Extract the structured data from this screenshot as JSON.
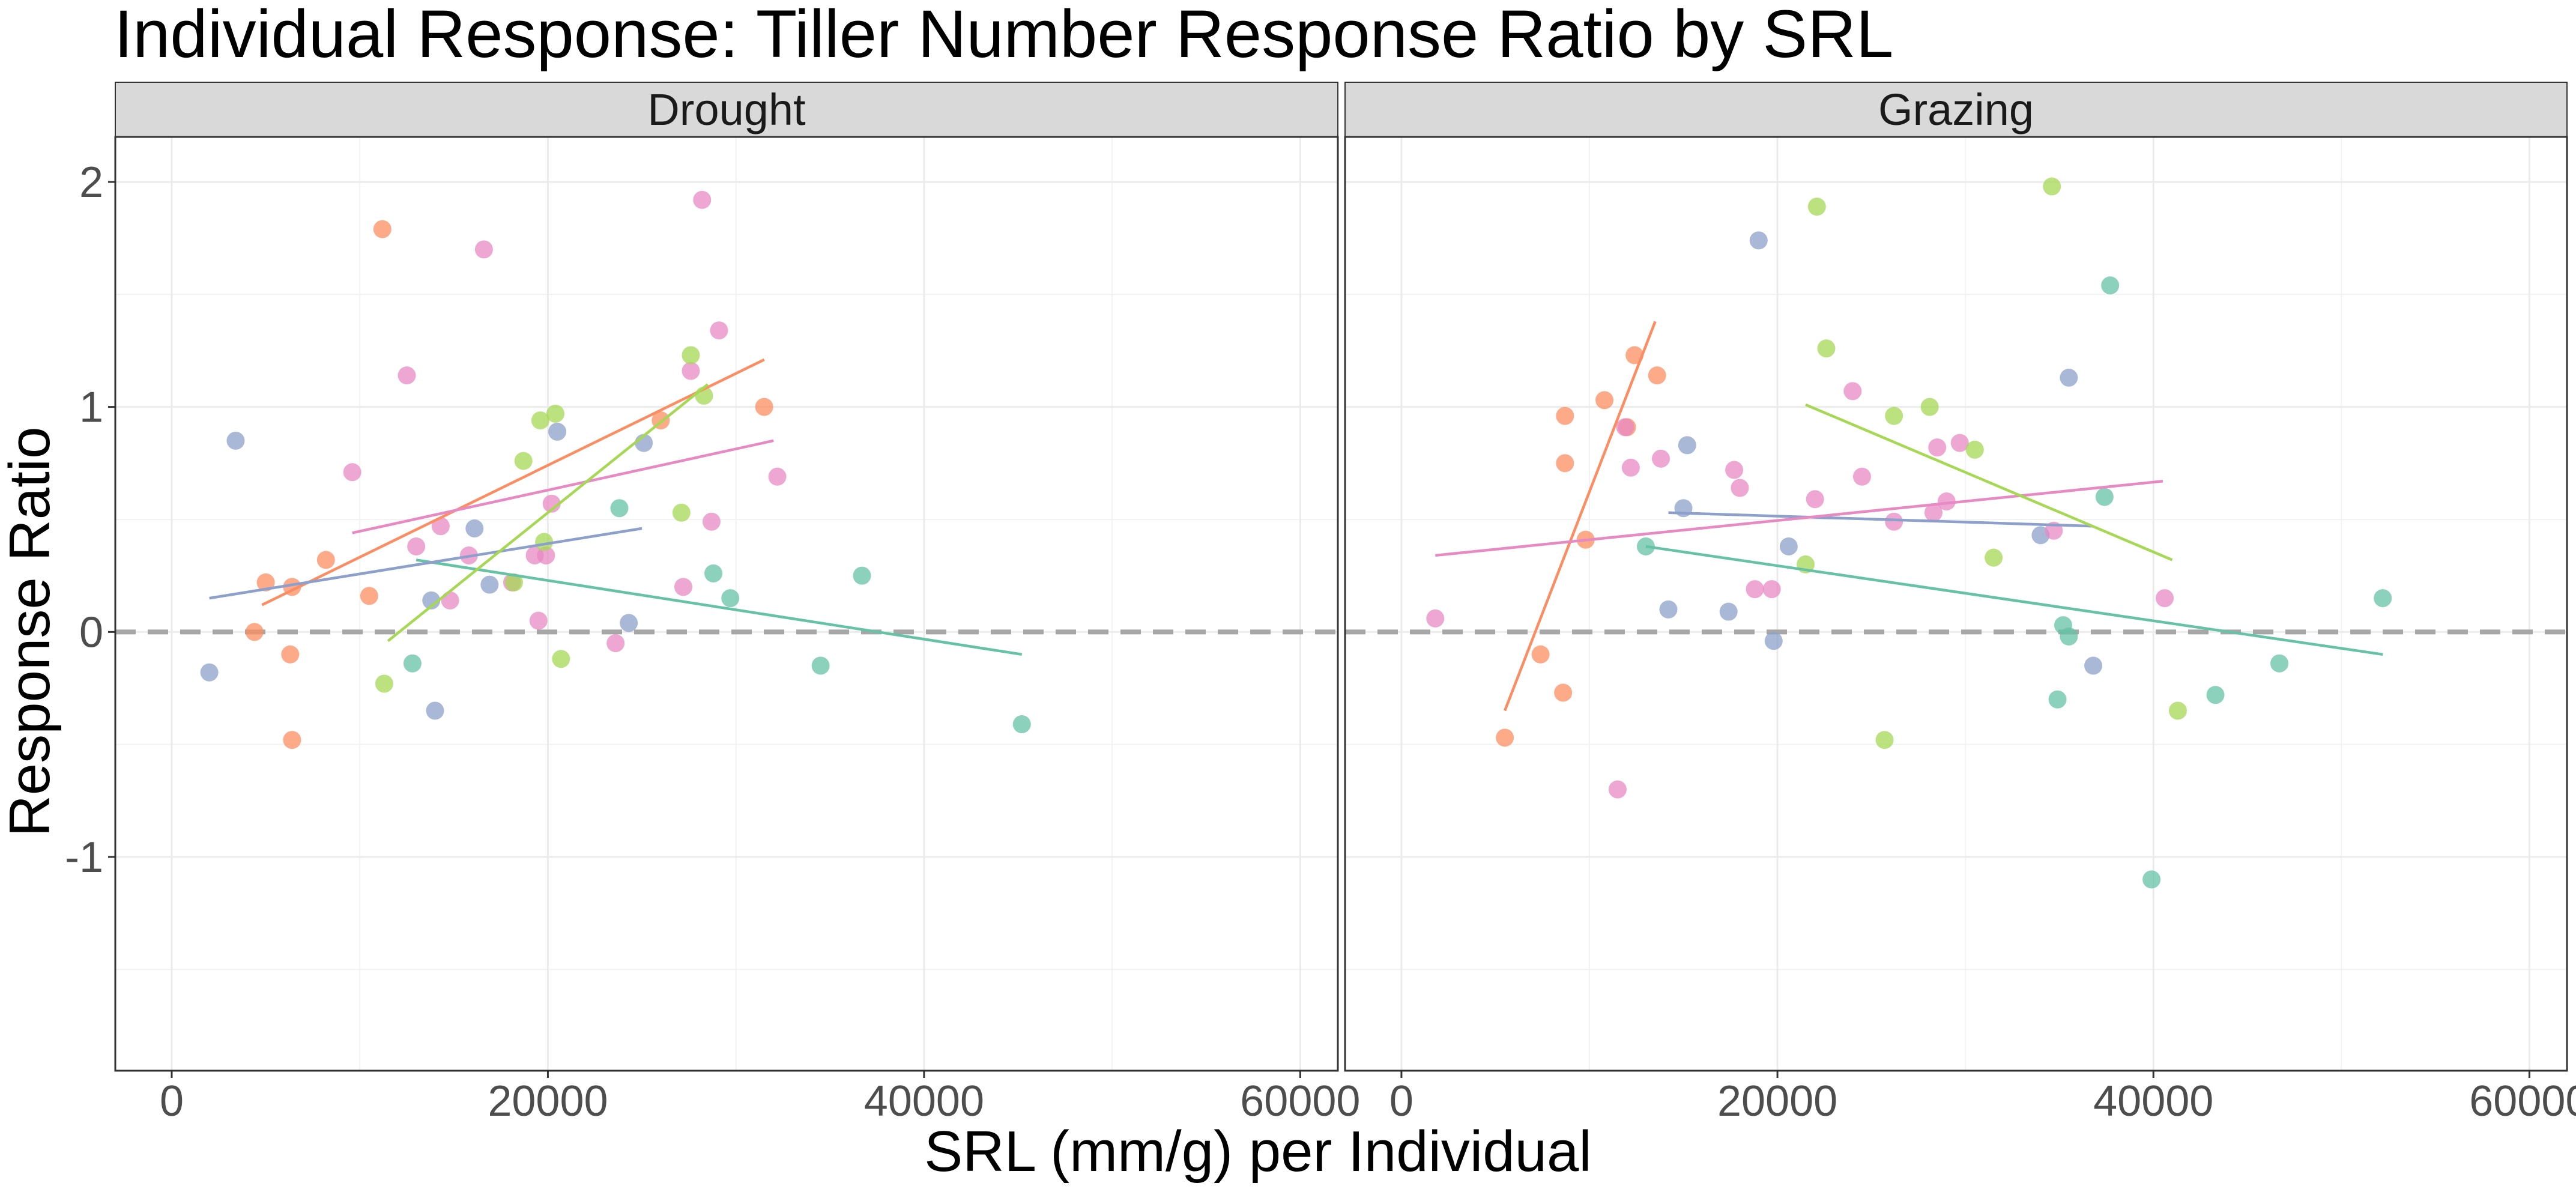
{
  "chart_data": {
    "type": "scatter",
    "title": "Individual Response: Tiller Number Response Ratio by SRL",
    "xlabel": "SRL (mm/g) per Individual",
    "ylabel": "Response Ratio",
    "xlim": [
      -3000,
      62000
    ],
    "ylim": [
      -1.95,
      2.2
    ],
    "x_ticks": [
      0,
      20000,
      40000,
      60000
    ],
    "x_tick_labels": [
      "0",
      "20000",
      "40000",
      "60000"
    ],
    "y_ticks": [
      -1,
      0,
      1,
      2
    ],
    "y_tick_labels": [
      "-1",
      "0",
      "1",
      "2"
    ],
    "grid": true,
    "legend": "none",
    "reference_line": {
      "y": 0,
      "style": "dashed",
      "color": "#a6a6a6"
    },
    "colors": {
      "teal": "#66c2a5",
      "orange": "#fc8d62",
      "blue": "#8da0cb",
      "pink": "#e78ac3",
      "green": "#a6d854"
    },
    "panels": [
      {
        "label": "Drought",
        "series": [
          {
            "color": "teal",
            "points": [
              [
                12800,
                -0.14
              ],
              [
                23800,
                0.55
              ],
              [
                28800,
                0.26
              ],
              [
                29700,
                0.15
              ],
              [
                34500,
                -0.15
              ],
              [
                36700,
                0.25
              ],
              [
                45200,
                -0.41
              ]
            ],
            "fit": [
              [
                13000,
                0.32
              ],
              [
                45200,
                -0.1
              ]
            ]
          },
          {
            "color": "orange",
            "points": [
              [
                4400,
                0.0
              ],
              [
                5000,
                0.22
              ],
              [
                6300,
                -0.1
              ],
              [
                6400,
                0.2
              ],
              [
                6400,
                -0.48
              ],
              [
                8200,
                0.32
              ],
              [
                10500,
                0.16
              ],
              [
                11200,
                1.79
              ],
              [
                26000,
                0.94
              ],
              [
                31500,
                1.0
              ]
            ],
            "fit": [
              [
                4800,
                0.12
              ],
              [
                31500,
                1.21
              ]
            ]
          },
          {
            "color": "blue",
            "points": [
              [
                2000,
                -0.18
              ],
              [
                3400,
                0.85
              ],
              [
                13800,
                0.14
              ],
              [
                14000,
                -0.35
              ],
              [
                16100,
                0.46
              ],
              [
                16900,
                0.21
              ],
              [
                20500,
                0.89
              ],
              [
                24300,
                0.04
              ],
              [
                25100,
                0.84
              ]
            ],
            "fit": [
              [
                2000,
                0.15
              ],
              [
                25000,
                0.46
              ]
            ]
          },
          {
            "color": "pink",
            "points": [
              [
                9600,
                0.71
              ],
              [
                12500,
                1.14
              ],
              [
                13000,
                0.38
              ],
              [
                14300,
                0.47
              ],
              [
                14800,
                0.14
              ],
              [
                15800,
                0.34
              ],
              [
                16600,
                1.7
              ],
              [
                18100,
                0.22
              ],
              [
                19300,
                0.34
              ],
              [
                19500,
                0.05
              ],
              [
                19900,
                0.34
              ],
              [
                20200,
                0.57
              ],
              [
                23600,
                -0.05
              ],
              [
                27200,
                0.2
              ],
              [
                27600,
                1.16
              ],
              [
                28200,
                1.92
              ],
              [
                28700,
                0.49
              ],
              [
                29100,
                1.34
              ],
              [
                32200,
                0.69
              ]
            ],
            "fit": [
              [
                9600,
                0.44
              ],
              [
                32000,
                0.85
              ]
            ]
          },
          {
            "color": "green",
            "points": [
              [
                11300,
                -0.23
              ],
              [
                18200,
                0.22
              ],
              [
                18700,
                0.76
              ],
              [
                19600,
                0.94
              ],
              [
                19800,
                0.4
              ],
              [
                20400,
                0.97
              ],
              [
                20700,
                -0.12
              ],
              [
                27100,
                0.53
              ],
              [
                27600,
                1.23
              ],
              [
                28300,
                1.05
              ]
            ],
            "fit": [
              [
                11500,
                -0.04
              ],
              [
                28500,
                1.1
              ]
            ]
          }
        ]
      },
      {
        "label": "Grazing",
        "series": [
          {
            "color": "teal",
            "points": [
              [
                13000,
                0.38
              ],
              [
                34900,
                -0.3
              ],
              [
                35200,
                0.03
              ],
              [
                35500,
                -0.02
              ],
              [
                37400,
                0.6
              ],
              [
                37700,
                1.54
              ],
              [
                39900,
                -1.1
              ],
              [
                43300,
                -0.28
              ],
              [
                46700,
                -0.14
              ],
              [
                52200,
                0.15
              ]
            ],
            "fit": [
              [
                13000,
                0.38
              ],
              [
                52200,
                -0.1
              ]
            ]
          },
          {
            "color": "orange",
            "points": [
              [
                5500,
                -0.47
              ],
              [
                7400,
                -0.1
              ],
              [
                8600,
                -0.27
              ],
              [
                8700,
                0.96
              ],
              [
                8700,
                0.75
              ],
              [
                9800,
                0.41
              ],
              [
                10800,
                1.03
              ],
              [
                12000,
                0.91
              ],
              [
                12400,
                1.23
              ],
              [
                13600,
                1.14
              ]
            ],
            "fit": [
              [
                5500,
                -0.35
              ],
              [
                13500,
                1.38
              ]
            ]
          },
          {
            "color": "blue",
            "points": [
              [
                14200,
                0.1
              ],
              [
                15000,
                0.55
              ],
              [
                15200,
                0.83
              ],
              [
                17400,
                0.09
              ],
              [
                19000,
                1.74
              ],
              [
                19800,
                -0.04
              ],
              [
                20600,
                0.38
              ],
              [
                34000,
                0.43
              ],
              [
                35500,
                1.13
              ],
              [
                36800,
                -0.15
              ]
            ],
            "fit": [
              [
                14200,
                0.53
              ],
              [
                36800,
                0.47
              ]
            ]
          },
          {
            "color": "pink",
            "points": [
              [
                1800,
                0.06
              ],
              [
                11500,
                -0.7
              ],
              [
                11900,
                0.91
              ],
              [
                12200,
                0.73
              ],
              [
                13800,
                0.77
              ],
              [
                17700,
                0.72
              ],
              [
                18000,
                0.64
              ],
              [
                18800,
                0.19
              ],
              [
                19700,
                0.19
              ],
              [
                22000,
                0.59
              ],
              [
                24000,
                1.07
              ],
              [
                24500,
                0.69
              ],
              [
                26200,
                0.49
              ],
              [
                28300,
                0.53
              ],
              [
                28500,
                0.82
              ],
              [
                29000,
                0.58
              ],
              [
                29700,
                0.84
              ],
              [
                34700,
                0.45
              ],
              [
                40600,
                0.15
              ]
            ],
            "fit": [
              [
                1800,
                0.34
              ],
              [
                40500,
                0.67
              ]
            ]
          },
          {
            "color": "green",
            "points": [
              [
                21500,
                0.3
              ],
              [
                22100,
                1.89
              ],
              [
                22600,
                1.26
              ],
              [
                25700,
                -0.48
              ],
              [
                26200,
                0.96
              ],
              [
                28100,
                1.0
              ],
              [
                30500,
                0.81
              ],
              [
                31500,
                0.33
              ],
              [
                34600,
                1.98
              ],
              [
                41300,
                -0.35
              ]
            ],
            "fit": [
              [
                21500,
                1.01
              ],
              [
                41000,
                0.32
              ]
            ]
          }
        ]
      }
    ]
  }
}
